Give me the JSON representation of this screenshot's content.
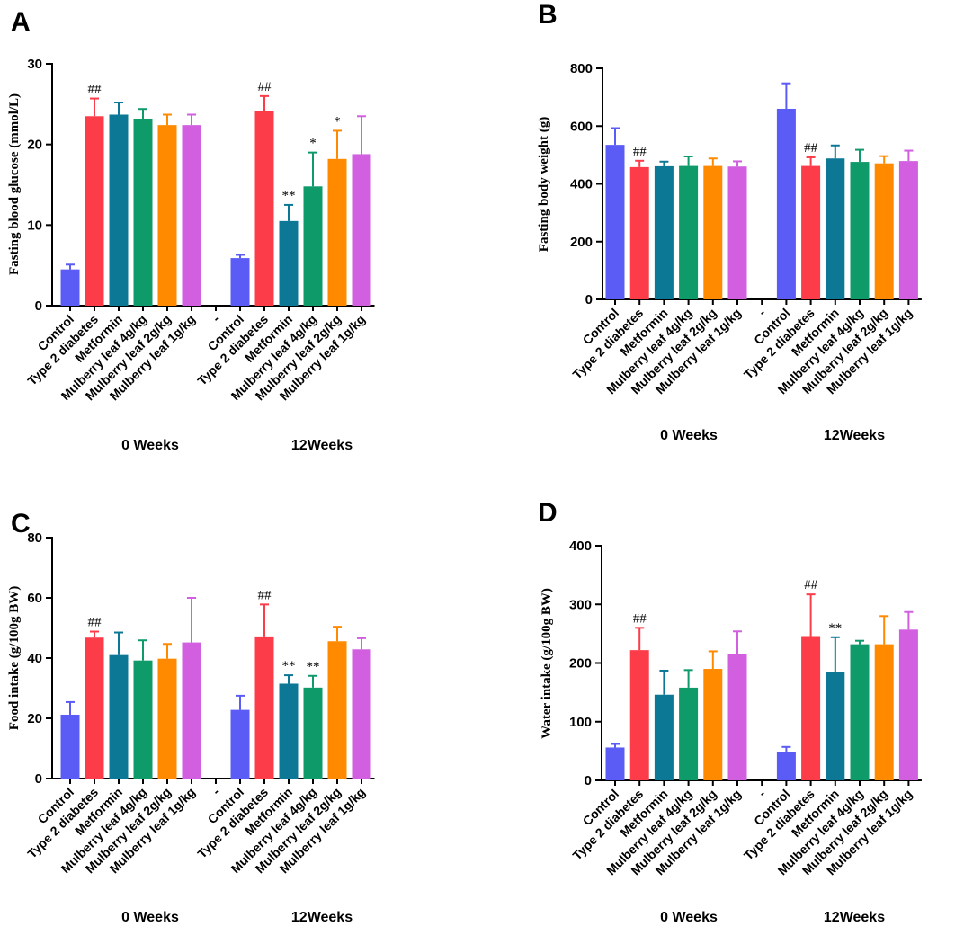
{
  "colors": [
    "#5a5cf5",
    "#fc3c48",
    "#0c7896",
    "#0f9a6a",
    "#ff8a00",
    "#d15fe0"
  ],
  "chart_data": [
    {
      "type": "bar",
      "panel": "A",
      "ylabel": "Fasting blood glucose (mmol/L)",
      "ylim": [
        0,
        30
      ],
      "yticks": [
        "0",
        "10",
        "20",
        "30"
      ],
      "categories": [
        "Control",
        "Type 2 diabetes",
        "Metformin",
        "Mulberry leaf 4g/kg",
        "Mulberry leaf 2g/kg",
        "Mulberry leaf 1g/kg",
        "-",
        "Control",
        "Type 2 diabetes",
        "Metformin",
        "Mulberry leaf 4g/kg",
        "Mulberry leaf 2g/kg",
        "Mulberry leaf 1g/kg"
      ],
      "groups": [
        "0 Weeks",
        "12Weeks"
      ],
      "values": [
        4.5,
        23.5,
        23.7,
        23.2,
        22.4,
        22.4,
        null,
        5.9,
        24.1,
        10.5,
        14.8,
        18.2,
        18.8
      ],
      "errors": [
        0.6,
        2.2,
        1.5,
        1.2,
        1.3,
        1.3,
        null,
        0.4,
        1.9,
        2.0,
        4.2,
        3.5,
        4.7
      ],
      "annotations": [
        "",
        "##",
        "",
        "",
        "",
        "",
        "",
        "",
        "##",
        "**",
        "*",
        "*",
        ""
      ]
    },
    {
      "type": "bar",
      "panel": "B",
      "ylabel": "Fasting body weight (g)",
      "ylim": [
        0,
        800
      ],
      "yticks": [
        "0",
        "200",
        "400",
        "600",
        "800"
      ],
      "categories": [
        "Control",
        "Type 2 diabetes",
        "Metformin",
        "Mulberry leaf 4g/kg",
        "Mulberry leaf 2g/kg",
        "Mulberry leaf 1g/kg",
        "-",
        "Control",
        "Type 2 diabetes",
        "Metformin",
        "Mulberry leaf 4g/kg",
        "Mulberry leaf 2g/kg",
        "Mulberry leaf 1g/kg"
      ],
      "groups": [
        "0 Weeks",
        "12Weeks"
      ],
      "values": [
        535,
        458,
        461,
        462,
        462,
        460,
        null,
        660,
        462,
        488,
        476,
        471,
        479
      ],
      "errors": [
        58,
        22,
        16,
        33,
        26,
        18,
        null,
        88,
        30,
        45,
        42,
        25,
        36
      ],
      "annotations": [
        "",
        "##",
        "",
        "",
        "",
        "",
        "",
        "",
        "##",
        "",
        "",
        "",
        ""
      ]
    },
    {
      "type": "bar",
      "panel": "C",
      "ylabel": "Food intake (g/100g BW)",
      "ylim": [
        0,
        80
      ],
      "yticks": [
        "0",
        "20",
        "40",
        "60",
        "80"
      ],
      "categories": [
        "Control",
        "Type 2 diabetes",
        "Metformin",
        "Mulberry leaf 4g/kg",
        "Mulberry leaf 2g/kg",
        "Mulberry leaf 1g/kg",
        "-",
        "Control",
        "Type 2 diabetes",
        "Metformin",
        "Mulberry leaf 4g/kg",
        "Mulberry leaf 2g/kg",
        "Mulberry leaf 1g/kg"
      ],
      "groups": [
        "0 Weeks",
        "12Weeks"
      ],
      "values": [
        21.2,
        46.8,
        41.0,
        39.2,
        39.8,
        45.2,
        null,
        22.8,
        47.2,
        31.5,
        30.2,
        45.6,
        42.9
      ],
      "errors": [
        4.2,
        2.0,
        7.5,
        6.7,
        4.9,
        14.8,
        null,
        4.7,
        10.6,
        2.8,
        3.9,
        4.8,
        3.7
      ],
      "annotations": [
        "",
        "##",
        "",
        "",
        "",
        "",
        "",
        "",
        "##",
        "**",
        "**",
        "",
        ""
      ]
    },
    {
      "type": "bar",
      "panel": "D",
      "ylabel": "Water intake (g/100g BW)",
      "ylim": [
        0,
        400
      ],
      "yticks": [
        "0",
        "100",
        "200",
        "300",
        "400"
      ],
      "categories": [
        "Control",
        "Type 2 diabetes",
        "Metformin",
        "Mulberry leaf 4g/kg",
        "Mulberry leaf 2g/kg",
        "Mulberry leaf 1g/kg",
        "-",
        "Control",
        "Type 2 diabetes",
        "Metformin",
        "Mulberry leaf 4g/kg",
        "Mulberry leaf 2g/kg",
        "Mulberry leaf 1g/kg"
      ],
      "groups": [
        "0 Weeks",
        "12Weeks"
      ],
      "values": [
        56,
        222,
        146,
        158,
        190,
        216,
        null,
        48,
        246,
        185,
        232,
        232,
        257
      ],
      "errors": [
        6,
        38,
        41,
        30,
        30,
        38,
        null,
        9,
        71,
        59,
        6,
        48,
        30
      ],
      "annotations": [
        "",
        "##",
        "",
        "",
        "",
        "",
        "",
        "",
        "##",
        "**",
        "",
        "",
        ""
      ]
    }
  ]
}
